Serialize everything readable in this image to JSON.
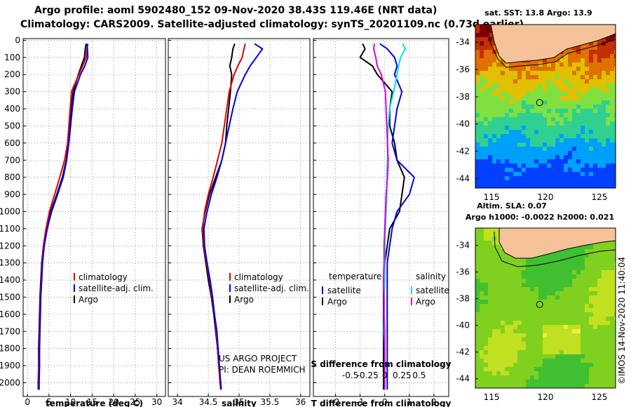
{
  "header": {
    "line1": "Argo profile: aoml 5902480_152 09-Nov-2020 38.43S 119.46E (NRT data)",
    "line2": "Climatology: CARS2009. Satellite-adjusted climatology: synTS_20201109.nc (0.73d earlier)"
  },
  "depth_ticks": [
    "0",
    "100",
    "200",
    "300",
    "400",
    "500",
    "600",
    "700",
    "800",
    "900",
    "1000",
    "1100",
    "1200",
    "1300",
    "1400",
    "1500",
    "1600",
    "1700",
    "1800",
    "1900",
    "2000"
  ],
  "colors": {
    "argo": "#000000",
    "clim": "#e00000",
    "sat": "#0000e0",
    "sal_sat": "#00e0e0",
    "sal_argo": "#e000e0"
  },
  "chart_data": [
    {
      "type": "line",
      "id": "temperature",
      "xlabel": "temperature (deg C)",
      "xlim": [
        -1,
        32
      ],
      "ylim": [
        2080,
        -10
      ],
      "xticks": [
        "0",
        "5",
        "10",
        "15",
        "20",
        "25",
        "30"
      ],
      "xtick_values": [
        0,
        5,
        10,
        15,
        20,
        25,
        30
      ],
      "legend": [
        "climatology",
        "satellite-adj. clim.",
        "Argo"
      ],
      "depth": [
        20,
        50,
        100,
        150,
        200,
        300,
        400,
        500,
        600,
        700,
        800,
        900,
        1000,
        1100,
        1200,
        1300,
        1400,
        1500,
        1600,
        1700,
        1800,
        1900,
        2000,
        2040
      ],
      "series": [
        {
          "name": "Argo",
          "color": "argo",
          "values": [
            13.6,
            13.4,
            13.2,
            12.5,
            11.8,
            10.6,
            10.1,
            9.8,
            9.5,
            9.0,
            8.1,
            6.8,
            5.4,
            4.4,
            3.7,
            3.3,
            3.1,
            2.9,
            2.8,
            2.7,
            2.6,
            2.6,
            2.5,
            2.5
          ]
        },
        {
          "name": "climatology",
          "color": "clim",
          "values": [
            14.0,
            13.8,
            13.6,
            12.8,
            11.9,
            10.2,
            9.9,
            9.6,
            9.3,
            8.6,
            7.5,
            6.3,
            5.1,
            4.3,
            3.7,
            3.4,
            3.2,
            3.0,
            2.9,
            2.8,
            2.7,
            2.6,
            2.6,
            2.6
          ]
        },
        {
          "name": "satellite-adj. clim.",
          "color": "sat",
          "values": [
            13.8,
            13.9,
            14.0,
            13.3,
            12.3,
            10.9,
            10.4,
            10.0,
            9.6,
            9.1,
            8.3,
            7.0,
            5.6,
            4.6,
            3.9,
            3.5,
            3.3,
            3.1,
            3.0,
            2.9,
            2.8,
            2.8,
            2.7,
            2.7
          ]
        }
      ]
    },
    {
      "type": "line",
      "id": "salinity",
      "xlabel": "salinity",
      "xlim": [
        33.85,
        36.15
      ],
      "ylim": [
        2080,
        -10
      ],
      "xticks": [
        "34",
        "34.5",
        "35",
        "35.5",
        "36"
      ],
      "xtick_values": [
        34,
        34.5,
        35,
        35.5,
        36
      ],
      "legend": [
        "climatology",
        "satellite-adj. clim.",
        "Argo"
      ],
      "credit1": "US ARGO PROJECT",
      "credit2": "PI: DEAN ROEMMICH",
      "depth": [
        20,
        50,
        100,
        150,
        200,
        300,
        400,
        500,
        600,
        700,
        800,
        900,
        1000,
        1100,
        1200,
        1300,
        1400,
        1500,
        1600,
        1700,
        1800,
        1900,
        2000,
        2040
      ],
      "series": [
        {
          "name": "Argo",
          "color": "argo",
          "values": [
            34.93,
            34.9,
            34.88,
            34.85,
            34.88,
            34.86,
            34.83,
            34.8,
            34.78,
            34.72,
            34.62,
            34.52,
            34.45,
            34.4,
            34.42,
            34.46,
            34.5,
            34.55,
            34.59,
            34.62,
            34.65,
            34.67,
            34.7,
            34.71
          ]
        },
        {
          "name": "climatology",
          "color": "clim",
          "values": [
            35.1,
            35.08,
            35.05,
            34.98,
            34.92,
            34.84,
            34.8,
            34.76,
            34.72,
            34.65,
            34.58,
            34.5,
            34.44,
            34.41,
            34.43,
            34.47,
            34.52,
            34.56,
            34.6,
            34.63,
            34.65,
            34.67,
            34.69,
            34.7
          ]
        },
        {
          "name": "satellite-adj. clim.",
          "color": "sat",
          "values": [
            35.25,
            35.38,
            35.28,
            35.18,
            35.1,
            34.97,
            34.9,
            34.84,
            34.78,
            34.72,
            34.64,
            34.55,
            34.48,
            34.43,
            34.44,
            34.48,
            34.53,
            34.57,
            34.6,
            34.64,
            34.66,
            34.68,
            34.7,
            34.71
          ]
        }
      ]
    },
    {
      "type": "line",
      "id": "difference",
      "xlabel": "T difference from climatology",
      "xlabel_top": "S difference from climatology",
      "xlim": [
        -2.9,
        2.6
      ],
      "ylim": [
        2080,
        -10
      ],
      "xticks": [
        "-2",
        "-1",
        "0",
        "1",
        "2"
      ],
      "xtick_values": [
        -2,
        -1,
        0,
        1,
        2
      ],
      "sticks": [
        "-0.5",
        "-0.25",
        "0",
        "0.25",
        "0.5"
      ],
      "stick_values": [
        -0.5,
        -0.25,
        0,
        0.25,
        0.5
      ],
      "s_scale": 2.8,
      "legend_left_title": "temperature",
      "legend_right_title": "salinity",
      "legend_left": [
        "satellite",
        "Argo"
      ],
      "legend_right": [
        "satellite",
        "Argo"
      ],
      "depth": [
        20,
        50,
        100,
        150,
        200,
        300,
        400,
        500,
        600,
        700,
        800,
        900,
        1000,
        1100,
        1200,
        1300,
        1400,
        1500,
        1600,
        1700,
        1800,
        1900,
        2000,
        2040
      ],
      "series": [
        {
          "name": "temperature Argo",
          "color": "argo",
          "values": [
            -0.9,
            -0.8,
            -1.0,
            -0.5,
            -0.3,
            0.3,
            0.2,
            0.2,
            0.4,
            0.5,
            0.8,
            0.7,
            0.6,
            0.2,
            0.1,
            0.0,
            -0.05,
            -0.05,
            -0.05,
            -0.05,
            -0.05,
            -0.05,
            -0.05,
            -0.05
          ]
        },
        {
          "name": "temperature satellite",
          "color": "sat",
          "values": [
            -0.2,
            0.1,
            0.4,
            0.5,
            0.4,
            0.7,
            0.5,
            0.4,
            0.3,
            0.5,
            1.2,
            1.0,
            0.5,
            0.3,
            0.2,
            0.1,
            0.1,
            0.1,
            0.1,
            0.1,
            0.1,
            0.1,
            0.1,
            0.1
          ]
        },
        {
          "name": "salinity satellite",
          "color": "sal_sat",
          "values": [
            0.26,
            0.3,
            0.23,
            0.2,
            0.18,
            0.13,
            0.07,
            0.05,
            0.04,
            0.04,
            0.03,
            0.03,
            0.02,
            0.01,
            0.0,
            0.0,
            0.0,
            -0.01,
            -0.01,
            -0.01,
            0.0,
            0.0,
            0.0,
            0.0
          ]
        },
        {
          "name": "salinity Argo",
          "color": "sal_argo",
          "values": [
            -0.15,
            -0.16,
            -0.13,
            -0.11,
            -0.05,
            0.01,
            0.02,
            0.03,
            0.04,
            0.05,
            0.04,
            0.02,
            0.01,
            0.0,
            -0.01,
            -0.01,
            -0.02,
            -0.01,
            -0.01,
            0.0,
            0.0,
            0.0,
            0.0,
            0.0
          ]
        }
      ]
    }
  ],
  "maps": {
    "top_title": "sat. SST: 13.8 Argo: 13.9",
    "mid_title1": "Altim. SLA: 0.07",
    "mid_title2": "Argo h1000: -0.0022 h2000: 0.021",
    "yticks": [
      "-34",
      "-36",
      "-38",
      "-40",
      "-42",
      "-44"
    ],
    "ytick_values": [
      -34,
      -36,
      -38,
      -40,
      -42,
      -44
    ],
    "xticks": [
      "115",
      "120",
      "125"
    ],
    "xtick_values": [
      115,
      120,
      125
    ],
    "lon": [
      113.5,
      126.5
    ],
    "lat": [
      -32.7,
      -44.7
    ],
    "argo_lon": 119.46,
    "argo_lat": -38.43
  },
  "credit": "©IMOS 14-Nov-2020 11:40:04"
}
